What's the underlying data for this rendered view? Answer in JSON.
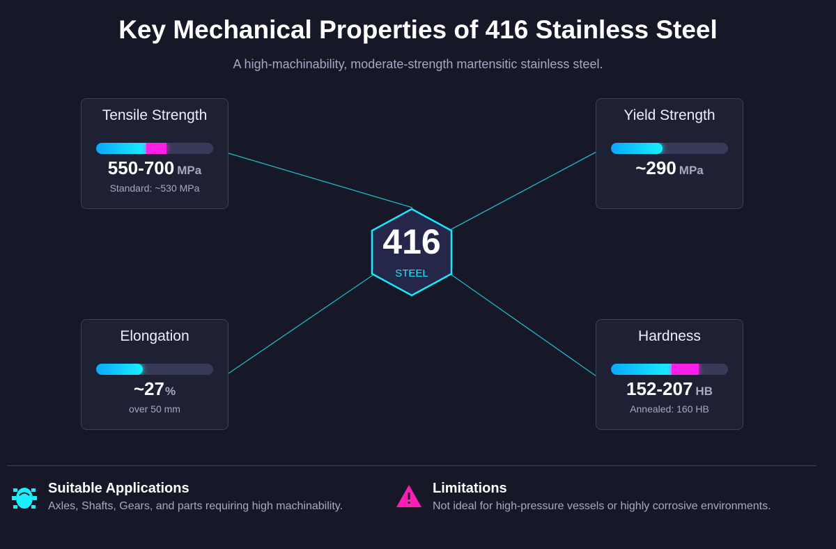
{
  "title": "Key Mechanical Properties of 416 Stainless Steel",
  "subtitle": "A high-machinability, moderate-strength martensitic stainless steel.",
  "center": {
    "number": "416",
    "label": "STEEL",
    "accent": "#18e8ff"
  },
  "cards": [
    {
      "title": "Tensile Strength",
      "value": "550-700",
      "unit": "MPa",
      "note": "Standard: ~530 MPa",
      "bar": {
        "cyan_pct": 43,
        "magenta_pct": 17
      }
    },
    {
      "title": "Yield Strength",
      "value": "~290",
      "unit": "MPa",
      "note": "",
      "bar": {
        "cyan_pct": 44,
        "magenta_pct": 0
      }
    },
    {
      "title": "Elongation",
      "value": "~27",
      "unit": "%",
      "note": "over 50 mm",
      "bar": {
        "cyan_pct": 40,
        "magenta_pct": 0
      }
    },
    {
      "title": "Hardness",
      "value": "152-207",
      "unit": "HB",
      "note": "Annealed: 160 HB",
      "bar": {
        "cyan_pct": 52,
        "magenta_pct": 23
      }
    }
  ],
  "footer": {
    "applications": {
      "icon": "cog-icon",
      "title": "Suitable Applications",
      "text": "Axles, Shafts, Gears, and parts requiring high machinability.",
      "color": "#18f0ff"
    },
    "limitations": {
      "icon": "warning-icon",
      "title": "Limitations",
      "text": "Not ideal for high-pressure vessels or highly corrosive environments.",
      "color": "#ff1eb4"
    }
  }
}
